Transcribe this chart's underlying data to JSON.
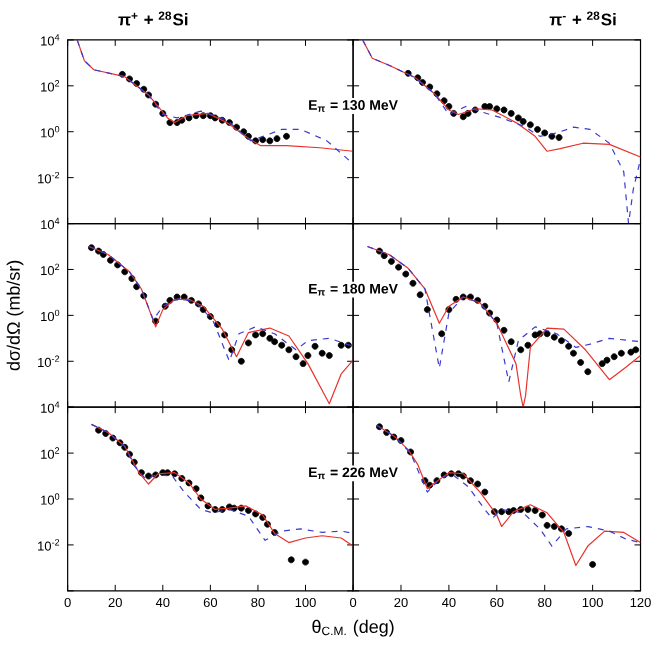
{
  "chart_data": [
    {
      "type": "line",
      "title": "π$^{+}$ + $^{28}$Si",
      "log": "y",
      "xlim": [
        0,
        120
      ],
      "ylim": [
        0.0001,
        10000
      ],
      "xticks": [
        0,
        20,
        40,
        60,
        80,
        100
      ],
      "yticks": [
        {
          "value": 10000,
          "label": "10$^{4}$"
        },
        {
          "value": 100,
          "label": "10$^{2}$"
        },
        {
          "value": 1,
          "label": "10$^{0}$"
        },
        {
          "value": 0.01,
          "label": "10$^{-2}$"
        },
        {
          "value": 0.0001,
          "label": null
        }
      ],
      "tick_labels": "y",
      "series": [
        {
          "type": "scatter",
          "color": "#000000",
          "marker": "circle",
          "x": [
            23,
            26,
            29,
            32,
            34,
            37,
            40,
            43,
            46,
            48,
            51,
            54,
            57,
            60,
            62,
            65,
            68,
            71,
            74,
            76,
            79,
            82,
            85,
            88,
            92
          ],
          "values": [
            316.0,
            200.0,
            126.0,
            71.0,
            40.0,
            15.8,
            6.3,
            2.5,
            2.5,
            3.16,
            4.0,
            5.0,
            5.0,
            5.0,
            4.0,
            3.16,
            2.5,
            1.58,
            1.0,
            0.63,
            0.4,
            0.45,
            0.4,
            0.5,
            0.63
          ]
        },
        {
          "type": "line",
          "color": "#e8322c",
          "line_style": "solid",
          "x": [
            4,
            7,
            11,
            24,
            34,
            42,
            45,
            50,
            59,
            67,
            74,
            81,
            92,
            106,
            120
          ],
          "values": [
            10000.0,
            1260.0,
            500.0,
            250.0,
            40.0,
            4.0,
            2.5,
            5.0,
            6.3,
            2.5,
            0.71,
            0.25,
            0.25,
            0.2,
            0.141
          ]
        },
        {
          "type": "line",
          "color": "#3a3ad0",
          "line_style": "dashed",
          "x": [
            4,
            7,
            11,
            24,
            34,
            40,
            46,
            56,
            67,
            77,
            90,
            98,
            109,
            120
          ],
          "values": [
            10000.0,
            1260.0,
            500.0,
            250.0,
            40.0,
            5.6,
            4.0,
            7.9,
            3.16,
            0.4,
            1.26,
            1.26,
            0.4,
            0.04
          ]
        }
      ]
    },
    {
      "type": "line",
      "title": "π$^{-}$ + $^{28}$Si",
      "annotations": [
        "E$_{π}$ = 130 MeV"
      ],
      "log": "y",
      "xlim": [
        0,
        120
      ],
      "ylim": [
        0.0001,
        10000
      ],
      "xticks": [
        0,
        20,
        40,
        60,
        80,
        100,
        120
      ],
      "yticks": [
        {
          "value": 10000,
          "label": null
        },
        {
          "value": 100,
          "label": null
        },
        {
          "value": 1,
          "label": null
        },
        {
          "value": 0.01,
          "label": null
        },
        {
          "value": 0.0001,
          "label": null
        }
      ],
      "tick_labels": false,
      "series": [
        {
          "type": "scatter",
          "color": "#000000",
          "marker": "circle",
          "x": [
            23,
            27,
            29,
            32,
            35,
            38,
            40,
            42,
            46,
            48,
            51,
            55,
            57,
            60,
            63,
            66,
            69,
            71,
            74,
            77,
            80,
            83,
            86
          ],
          "values": [
            350.0,
            224.0,
            141.0,
            89.0,
            45.0,
            22.4,
            12.6,
            6.3,
            4.5,
            6.3,
            8.9,
            12.6,
            12.6,
            10.0,
            8.9,
            6.3,
            4.0,
            2.8,
            2.0,
            1.26,
            0.89,
            0.63,
            0.56
          ]
        },
        {
          "type": "line",
          "color": "#e8322c",
          "line_style": "solid",
          "x": [
            4,
            8,
            15,
            26,
            34,
            40,
            44,
            51,
            58,
            68,
            76,
            81,
            86,
            96,
            107,
            120
          ],
          "values": [
            10000.0,
            1580.0,
            790.0,
            224.0,
            45.0,
            8.9,
            5.6,
            10.0,
            8.9,
            2.5,
            0.63,
            0.141,
            0.178,
            0.316,
            0.28,
            0.079
          ]
        },
        {
          "type": "line",
          "color": "#3a3ad0",
          "line_style": "dashed",
          "x": [
            4,
            8,
            15,
            26,
            34,
            40,
            47,
            54,
            62,
            71,
            78,
            85,
            92,
            99,
            107,
            113,
            115,
            117,
            120
          ],
          "values": [
            10000.0,
            1580.0,
            790.0,
            224.0,
            45.0,
            5.6,
            12.6,
            7.1,
            4.0,
            1.78,
            0.63,
            0.89,
            1.58,
            1.26,
            0.316,
            0.0178,
            0.0001,
            0.00316,
            0.063
          ]
        }
      ]
    },
    {
      "type": "line",
      "ylabel": "dσ/dΩ (mb/sr)",
      "log": "y",
      "xlim": [
        0,
        120
      ],
      "ylim": [
        0.0001,
        10000
      ],
      "xticks": [
        0,
        20,
        40,
        60,
        80,
        100
      ],
      "yticks": [
        {
          "value": 10000,
          "label": "10$^{4}$"
        },
        {
          "value": 100,
          "label": "10$^{2}$"
        },
        {
          "value": 1,
          "label": "10$^{0}$"
        },
        {
          "value": 0.01,
          "label": "10$^{-2}$"
        },
        {
          "value": 0.0001,
          "label": null
        }
      ],
      "tick_labels": "y",
      "series": [
        {
          "type": "scatter",
          "color": "#000000",
          "marker": "circle",
          "x": [
            10,
            13,
            15,
            18,
            21,
            24,
            27,
            29,
            32,
            37,
            41,
            43,
            46,
            49,
            52,
            55,
            57,
            60,
            63,
            66,
            69,
            73,
            76,
            79,
            82,
            85,
            87,
            90,
            93,
            96,
            99,
            101,
            104,
            107,
            110,
            115,
            118
          ],
          "values": [
            890.0,
            630.0,
            450.0,
            250.0,
            158.0,
            79.0,
            40.0,
            17.8,
            7.1,
            0.56,
            2.5,
            4.5,
            6.3,
            6.3,
            4.5,
            3.16,
            1.78,
            0.89,
            0.4,
            0.141,
            0.0316,
            0.01,
            0.063,
            0.141,
            0.158,
            0.1,
            0.071,
            0.05,
            0.0316,
            0.0158,
            0.0079,
            0.0178,
            0.045,
            0.0224,
            0.0178,
            0.05,
            0.05
          ]
        },
        {
          "type": "line",
          "color": "#e8322c",
          "line_style": "solid",
          "x": [
            9,
            17,
            26,
            31,
            37,
            40,
            45,
            51,
            57,
            65,
            71,
            76,
            85,
            93,
            101,
            110,
            115,
            120
          ],
          "values": [
            1000.0,
            450.0,
            79.0,
            14.1,
            0.316,
            1.78,
            5.0,
            5.0,
            2.5,
            0.25,
            0.0158,
            0.178,
            0.28,
            0.126,
            0.0079,
            0.000141,
            0.0028,
            0.0112
          ]
        },
        {
          "type": "line",
          "color": "#3a3ad0",
          "line_style": "dashed",
          "x": [
            9,
            17,
            26,
            31,
            36,
            40,
            47,
            54,
            61,
            68,
            72,
            79,
            87,
            96,
            101,
            110,
            120
          ],
          "values": [
            1000.0,
            450.0,
            79.0,
            14.1,
            0.63,
            2.5,
            5.6,
            3.5,
            0.63,
            0.01,
            0.158,
            0.316,
            0.158,
            0.0316,
            0.079,
            0.1,
            0.045
          ]
        }
      ]
    },
    {
      "type": "line",
      "annotations": [
        "E$_{π}$ = 180 MeV"
      ],
      "log": "y",
      "xlim": [
        0,
        120
      ],
      "ylim": [
        0.0001,
        10000
      ],
      "xticks": [
        0,
        20,
        40,
        60,
        80,
        100,
        120
      ],
      "yticks": [
        {
          "value": 10000,
          "label": null
        },
        {
          "value": 100,
          "label": null
        },
        {
          "value": 1,
          "label": null
        },
        {
          "value": 0.01,
          "label": null
        },
        {
          "value": 0.0001,
          "label": null
        }
      ],
      "tick_labels": false,
      "series": [
        {
          "type": "scatter",
          "color": "#000000",
          "marker": "circle",
          "x": [
            11,
            13,
            16,
            19,
            22,
            25,
            28,
            31,
            37,
            40,
            43,
            46,
            49,
            52,
            55,
            57,
            60,
            63,
            66,
            70,
            73,
            76,
            78,
            81,
            84,
            87,
            90,
            92,
            95,
            98,
            104,
            106,
            109,
            112,
            116,
            118
          ],
          "values": [
            630.0,
            400.0,
            224.0,
            126.0,
            63.0,
            25.0,
            7.9,
            1.78,
            0.158,
            1.78,
            5.0,
            6.3,
            6.3,
            4.5,
            2.5,
            1.26,
            0.63,
            0.224,
            0.071,
            0.0316,
            0.05,
            0.141,
            0.158,
            0.158,
            0.112,
            0.079,
            0.045,
            0.0224,
            0.0089,
            0.0035,
            0.0079,
            0.0112,
            0.0158,
            0.0224,
            0.025,
            0.0316
          ]
        },
        {
          "type": "line",
          "color": "#e8322c",
          "line_style": "solid",
          "x": [
            6,
            15,
            23,
            30,
            36,
            40,
            46,
            53,
            60,
            68,
            70,
            71,
            72,
            74,
            81,
            88,
            97,
            107,
            114,
            120
          ],
          "values": [
            1000.0,
            450.0,
            112.0,
            14.1,
            0.45,
            2.5,
            6.3,
            3.5,
            0.45,
            0.0079,
            0.000316,
            0.0001,
            0.000316,
            0.04,
            0.28,
            0.25,
            0.0316,
            0.00158,
            0.0056,
            0.0178
          ]
        },
        {
          "type": "line",
          "color": "#3a3ad0",
          "line_style": "dashed",
          "x": [
            6,
            15,
            23,
            30,
            36,
            40,
            46,
            53,
            60,
            65,
            69,
            76,
            85,
            93,
            99,
            107,
            120
          ],
          "values": [
            1000.0,
            450.0,
            112.0,
            14.1,
            0.005,
            1.26,
            6.3,
            3.5,
            0.45,
            0.00126,
            0.079,
            0.316,
            0.158,
            0.04,
            0.056,
            0.1,
            0.071
          ]
        }
      ]
    },
    {
      "type": "line",
      "xlabel": "θ$_{C.M.}$ (deg)",
      "log": "y",
      "xlim": [
        0,
        120
      ],
      "ylim": [
        0.0001,
        10000
      ],
      "xticks": [
        0,
        20,
        40,
        60,
        80,
        100
      ],
      "yticks": [
        {
          "value": 10000,
          "label": "10$^{4}$"
        },
        {
          "value": 100,
          "label": "10$^{2}$"
        },
        {
          "value": 1,
          "label": "10$^{0}$"
        },
        {
          "value": 0.01,
          "label": "10$^{-2}$"
        },
        {
          "value": 0.0001,
          "label": null
        }
      ],
      "series": [
        {
          "type": "scatter",
          "color": "#000000",
          "marker": "circle",
          "x": [
            13,
            16,
            19,
            22,
            24,
            26,
            28,
            31,
            34,
            37,
            40,
            42,
            45,
            48,
            51,
            54,
            56,
            59,
            62,
            65,
            68,
            70,
            73,
            76,
            79,
            82,
            84,
            87,
            94,
            100
          ],
          "values": [
            1000.0,
            710.0,
            450.0,
            280.0,
            178.0,
            89.0,
            40.0,
            14.1,
            10.0,
            11.2,
            14.1,
            14.1,
            12.6,
            7.9,
            5.0,
            2.8,
            1.12,
            0.5,
            0.35,
            0.35,
            0.45,
            0.4,
            0.4,
            0.316,
            0.224,
            0.158,
            0.079,
            0.035,
            0.00224,
            0.00178
          ]
        },
        {
          "type": "line",
          "color": "#e8322c",
          "line_style": "solid",
          "x": [
            10,
            17,
            24,
            30,
            34,
            38,
            45,
            51,
            56,
            62,
            68,
            75,
            82,
            87,
            93,
            100,
            107,
            115,
            120
          ],
          "values": [
            1780.0,
            790.0,
            200.0,
            14.1,
            4.5,
            12.6,
            14.1,
            5.0,
            1.0,
            0.35,
            0.4,
            0.5,
            0.2,
            0.0316,
            0.0126,
            0.02,
            0.025,
            0.02,
            0.0089
          ]
        },
        {
          "type": "line",
          "color": "#3a3ad0",
          "line_style": "dashed",
          "x": [
            10,
            17,
            24,
            28,
            33,
            37,
            44,
            49,
            56,
            61,
            68,
            76,
            83,
            90,
            98,
            107,
            115,
            120
          ],
          "values": [
            1780.0,
            790.0,
            200.0,
            28.0,
            7.1,
            11.2,
            10.0,
            2.0,
            0.35,
            0.25,
            0.35,
            0.178,
            0.0158,
            0.04,
            0.05,
            0.035,
            0.04,
            0.0316
          ]
        }
      ]
    },
    {
      "type": "line",
      "annotations": [
        "E$_{π}$ = 226 MeV"
      ],
      "log": "y",
      "xlim": [
        0,
        120
      ],
      "ylim": [
        0.0001,
        10000
      ],
      "xticks": [
        0,
        20,
        40,
        60,
        80,
        100,
        120
      ],
      "yticks": [
        {
          "value": 10000,
          "label": null
        },
        {
          "value": 100,
          "label": null
        },
        {
          "value": 1,
          "label": null
        },
        {
          "value": 0.01,
          "label": null
        },
        {
          "value": 0.0001,
          "label": null
        }
      ],
      "tick_labels": "x",
      "series": [
        {
          "type": "scatter",
          "color": "#000000",
          "marker": "circle",
          "x": [
            11,
            14,
            17,
            20,
            24,
            30,
            32,
            35,
            38,
            41,
            44,
            46,
            49,
            52,
            55,
            59,
            62,
            65,
            67,
            70,
            73,
            76,
            79,
            81,
            84,
            87,
            90,
            100
          ],
          "values": [
            1410.0,
            790.0,
            500.0,
            350.0,
            112.0,
            6.3,
            4.0,
            6.3,
            11.2,
            12.6,
            12.6,
            10.0,
            6.3,
            4.5,
            2.0,
            0.28,
            0.28,
            0.28,
            0.316,
            0.35,
            0.35,
            0.316,
            0.2,
            0.071,
            0.063,
            0.05,
            0.0316,
            0.00141
          ]
        },
        {
          "type": "line",
          "color": "#e8322c",
          "line_style": "solid",
          "x": [
            10,
            17,
            23,
            27,
            31,
            34,
            40,
            46,
            53,
            60,
            62,
            67,
            74,
            81,
            88,
            93,
            98,
            105,
            113,
            120
          ],
          "values": [
            1580.0,
            560.0,
            141.0,
            31.6,
            2.8,
            5.0,
            14.1,
            12.6,
            2.0,
            0.2,
            0.063,
            0.28,
            0.56,
            0.25,
            0.035,
            0.00126,
            0.0089,
            0.04,
            0.035,
            0.0126
          ]
        },
        {
          "type": "line",
          "color": "#3a3ad0",
          "line_style": "dashed",
          "x": [
            10,
            17,
            24,
            31,
            36,
            41,
            48,
            55,
            58,
            62,
            71,
            78,
            83,
            89,
            98,
            107,
            114,
            120
          ],
          "values": [
            1580.0,
            560.0,
            100.0,
            2.0,
            7.1,
            12.6,
            3.5,
            0.35,
            0.141,
            0.35,
            0.25,
            0.05,
            0.0089,
            0.05,
            0.063,
            0.04,
            0.0178,
            0.0126
          ]
        }
      ]
    }
  ]
}
